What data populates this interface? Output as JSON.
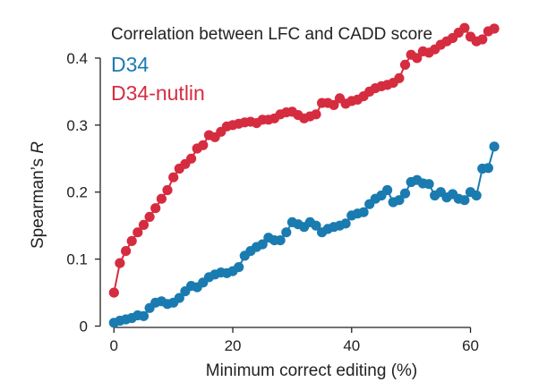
{
  "chart_data": {
    "type": "line",
    "title": "Correlation between LFC and CADD score",
    "xlabel": "Minimum correct editing (%)",
    "ylabel": {
      "text": "Spearman’s ",
      "italic": "R"
    },
    "xlim": [
      -2,
      67
    ],
    "ylim": [
      -0.01,
      0.46
    ],
    "xticks": [
      0,
      20,
      40,
      60
    ],
    "xtick_labels": [
      "0",
      "20",
      "40",
      "60"
    ],
    "yticks": [
      0,
      0.1,
      0.2,
      0.3,
      0.4
    ],
    "ytick_labels": [
      "0",
      "0.1",
      "0.2",
      "0.3",
      "0.4"
    ],
    "grid": false,
    "legend_position": "top-left",
    "x": [
      0,
      1,
      2,
      3,
      4,
      5,
      6,
      7,
      8,
      9,
      10,
      11,
      12,
      13,
      14,
      15,
      16,
      17,
      18,
      19,
      20,
      21,
      22,
      23,
      24,
      25,
      26,
      27,
      28,
      29,
      30,
      31,
      32,
      33,
      34,
      35,
      36,
      37,
      38,
      39,
      40,
      41,
      42,
      43,
      44,
      45,
      46,
      47,
      48,
      49,
      50,
      51,
      52,
      53,
      54,
      55,
      56,
      57,
      58,
      59,
      60,
      61,
      62,
      63,
      64
    ],
    "series": [
      {
        "name": "D34",
        "color": "#1a7bb0",
        "values": [
          0.005,
          0.008,
          0.01,
          0.012,
          0.016,
          0.015,
          0.027,
          0.035,
          0.037,
          0.033,
          0.035,
          0.042,
          0.052,
          0.06,
          0.058,
          0.065,
          0.073,
          0.077,
          0.08,
          0.079,
          0.082,
          0.088,
          0.105,
          0.112,
          0.118,
          0.122,
          0.132,
          0.128,
          0.128,
          0.14,
          0.155,
          0.152,
          0.148,
          0.155,
          0.15,
          0.14,
          0.145,
          0.148,
          0.15,
          0.153,
          0.165,
          0.168,
          0.17,
          0.182,
          0.19,
          0.195,
          0.203,
          0.185,
          0.188,
          0.198,
          0.215,
          0.218,
          0.213,
          0.212,
          0.195,
          0.2,
          0.192,
          0.197,
          0.19,
          0.188,
          0.2,
          0.195,
          0.235,
          0.236,
          0.268
        ]
      },
      {
        "name": "D34-nutlin",
        "color": "#d62c40",
        "values": [
          0.05,
          0.094,
          0.112,
          0.127,
          0.14,
          0.151,
          0.163,
          0.176,
          0.19,
          0.203,
          0.222,
          0.235,
          0.242,
          0.25,
          0.265,
          0.27,
          0.285,
          0.282,
          0.29,
          0.298,
          0.3,
          0.302,
          0.304,
          0.305,
          0.303,
          0.308,
          0.308,
          0.31,
          0.316,
          0.319,
          0.32,
          0.315,
          0.31,
          0.313,
          0.316,
          0.333,
          0.333,
          0.33,
          0.34,
          0.332,
          0.336,
          0.338,
          0.343,
          0.35,
          0.355,
          0.358,
          0.36,
          0.363,
          0.37,
          0.39,
          0.405,
          0.4,
          0.41,
          0.408,
          0.413,
          0.42,
          0.425,
          0.43,
          0.438,
          0.445,
          0.432,
          0.425,
          0.428,
          0.44,
          0.444
        ]
      }
    ]
  }
}
